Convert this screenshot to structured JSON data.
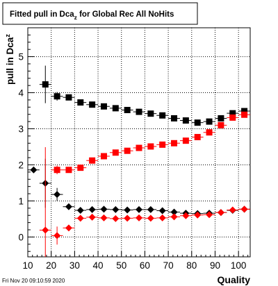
{
  "chart_data": {
    "type": "scatter",
    "title": "Fitted pull in Dca",
    "title_subscript": "z",
    "title_rest": " for Global Rec All NoHits",
    "xlabel": "Quality",
    "ylabel": "pull in Dca",
    "ylabel_subscript": "z",
    "timestamp": "Fri Nov 20 09:10:59 2020",
    "xlim": [
      10,
      105
    ],
    "ylim": [
      -0.55,
      5.8
    ],
    "x_ticks": [
      "10",
      "20",
      "30",
      "40",
      "50",
      "60",
      "70",
      "80",
      "90",
      "100"
    ],
    "y_ticks": [
      "0",
      "1",
      "2",
      "3",
      "4",
      "5"
    ],
    "grid": true,
    "series": [
      {
        "marker": "square",
        "color": "#000000",
        "points": [
          {
            "x": 17.5,
            "y": 4.23,
            "err": 0.52
          },
          {
            "x": 22.5,
            "y": 3.9,
            "err": 0.12
          },
          {
            "x": 27.5,
            "y": 3.87,
            "err": 0.08
          },
          {
            "x": 32.5,
            "y": 3.73
          },
          {
            "x": 37.5,
            "y": 3.67
          },
          {
            "x": 42.5,
            "y": 3.62
          },
          {
            "x": 47.5,
            "y": 3.57
          },
          {
            "x": 52.5,
            "y": 3.52
          },
          {
            "x": 57.5,
            "y": 3.47
          },
          {
            "x": 62.5,
            "y": 3.42
          },
          {
            "x": 67.5,
            "y": 3.37
          },
          {
            "x": 72.5,
            "y": 3.29
          },
          {
            "x": 77.5,
            "y": 3.23
          },
          {
            "x": 82.5,
            "y": 3.17
          },
          {
            "x": 87.5,
            "y": 3.2
          },
          {
            "x": 92.5,
            "y": 3.29
          },
          {
            "x": 97.5,
            "y": 3.43
          },
          {
            "x": 102.5,
            "y": 3.49
          }
        ]
      },
      {
        "marker": "square",
        "color": "#ff0000",
        "points": [
          {
            "x": 22.5,
            "y": 1.86,
            "err": 0.12
          },
          {
            "x": 27.5,
            "y": 1.86,
            "err": 0.08
          },
          {
            "x": 32.5,
            "y": 1.92
          },
          {
            "x": 37.5,
            "y": 2.12
          },
          {
            "x": 42.5,
            "y": 2.24
          },
          {
            "x": 47.5,
            "y": 2.34
          },
          {
            "x": 52.5,
            "y": 2.39
          },
          {
            "x": 57.5,
            "y": 2.47
          },
          {
            "x": 62.5,
            "y": 2.51
          },
          {
            "x": 67.5,
            "y": 2.56
          },
          {
            "x": 72.5,
            "y": 2.6
          },
          {
            "x": 77.5,
            "y": 2.67
          },
          {
            "x": 82.5,
            "y": 2.77
          },
          {
            "x": 87.5,
            "y": 2.9
          },
          {
            "x": 92.5,
            "y": 3.1
          },
          {
            "x": 97.5,
            "y": 3.31
          },
          {
            "x": 102.5,
            "y": 3.39
          }
        ]
      },
      {
        "marker": "diamond",
        "color": "#000000",
        "points": [
          {
            "x": 12.5,
            "y": 1.86
          },
          {
            "x": 17.5,
            "y": 1.49,
            "err": 0.68
          },
          {
            "x": 22.5,
            "y": 1.18,
            "err": 0.18
          },
          {
            "x": 27.5,
            "y": 0.84
          },
          {
            "x": 32.5,
            "y": 0.74
          },
          {
            "x": 37.5,
            "y": 0.76
          },
          {
            "x": 42.5,
            "y": 0.77
          },
          {
            "x": 47.5,
            "y": 0.76
          },
          {
            "x": 52.5,
            "y": 0.75
          },
          {
            "x": 57.5,
            "y": 0.76
          },
          {
            "x": 62.5,
            "y": 0.76
          },
          {
            "x": 67.5,
            "y": 0.73
          },
          {
            "x": 72.5,
            "y": 0.69
          },
          {
            "x": 77.5,
            "y": 0.66
          },
          {
            "x": 82.5,
            "y": 0.65
          },
          {
            "x": 87.5,
            "y": 0.66
          },
          {
            "x": 92.5,
            "y": 0.68
          },
          {
            "x": 97.5,
            "y": 0.74
          },
          {
            "x": 102.5,
            "y": 0.77
          }
        ]
      },
      {
        "marker": "diamond",
        "color": "#ff0000",
        "points": [
          {
            "x": 17.5,
            "y": 0.19,
            "err": 2.3
          },
          {
            "x": 22.5,
            "y": 0.04,
            "err": 0.25
          },
          {
            "x": 27.5,
            "y": 0.25,
            "err": 0.06
          },
          {
            "x": 32.5,
            "y": 0.52
          },
          {
            "x": 37.5,
            "y": 0.55
          },
          {
            "x": 42.5,
            "y": 0.53
          },
          {
            "x": 47.5,
            "y": 0.51
          },
          {
            "x": 52.5,
            "y": 0.52
          },
          {
            "x": 57.5,
            "y": 0.53
          },
          {
            "x": 62.5,
            "y": 0.52
          },
          {
            "x": 67.5,
            "y": 0.53
          },
          {
            "x": 72.5,
            "y": 0.56
          },
          {
            "x": 77.5,
            "y": 0.59
          },
          {
            "x": 82.5,
            "y": 0.61
          },
          {
            "x": 87.5,
            "y": 0.62
          },
          {
            "x": 92.5,
            "y": 0.68
          },
          {
            "x": 97.5,
            "y": 0.75
          },
          {
            "x": 102.5,
            "y": 0.77
          }
        ]
      }
    ]
  }
}
